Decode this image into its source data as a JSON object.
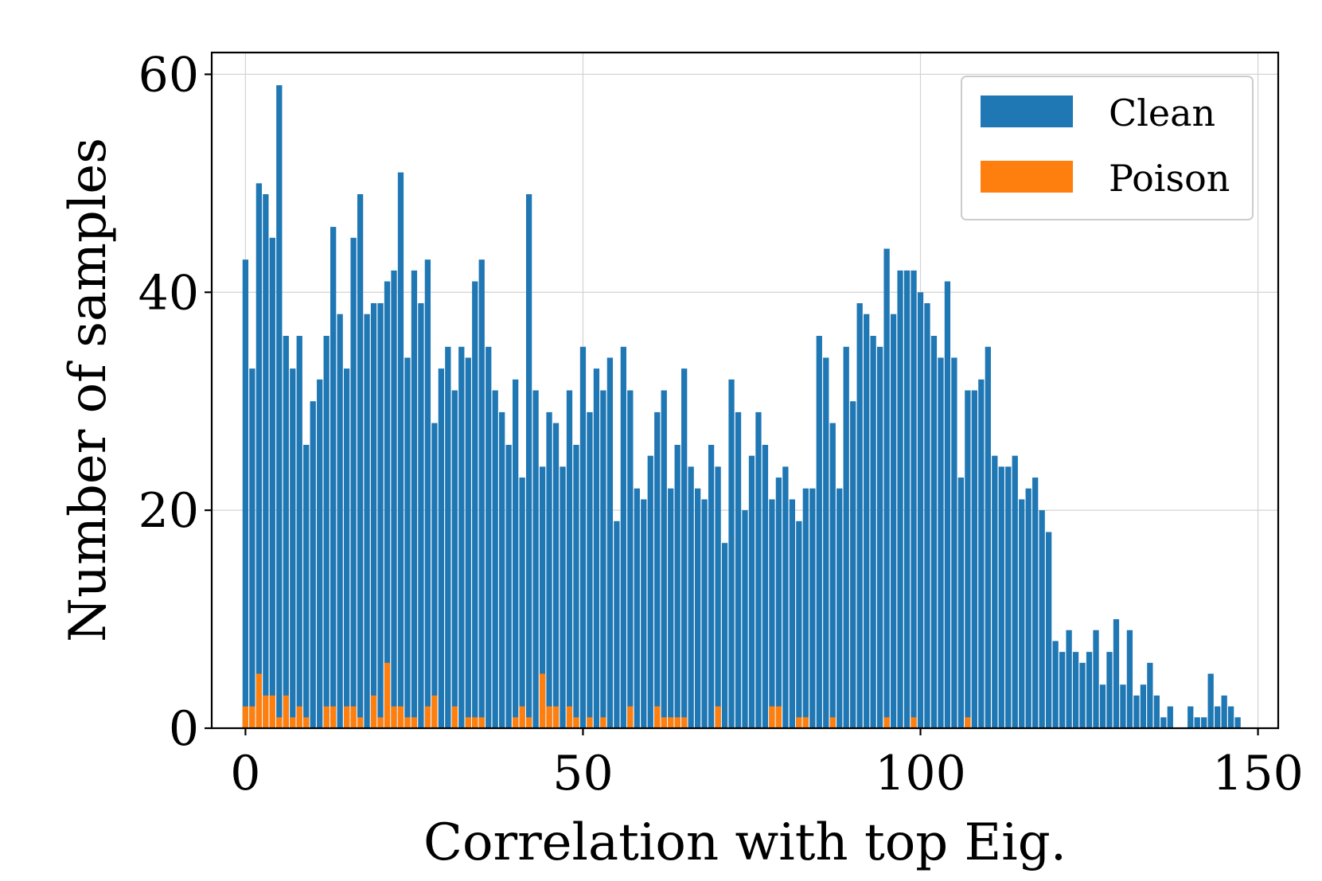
{
  "chart_data": {
    "type": "bar",
    "title": "",
    "xlabel": "Correlation with top Eig.",
    "ylabel": "Number of samples",
    "xlim": [
      -5,
      153
    ],
    "ylim": [
      0,
      62
    ],
    "xticks": [
      0,
      50,
      100,
      150
    ],
    "yticks": [
      0,
      20,
      40,
      60
    ],
    "grid": true,
    "legend_position": "top-right",
    "series": [
      {
        "name": "Clean",
        "color": "#1f77b4",
        "values": [
          43,
          33,
          50,
          49,
          45,
          59,
          36,
          33,
          36,
          26,
          30,
          32,
          36,
          46,
          38,
          33,
          45,
          49,
          38,
          39,
          39,
          41,
          42,
          51,
          34,
          42,
          39,
          43,
          28,
          33,
          35,
          31,
          35,
          34,
          41,
          43,
          35,
          31,
          29,
          26,
          32,
          23,
          49,
          31,
          24,
          29,
          28,
          24,
          31,
          26,
          35,
          29,
          33,
          31,
          34,
          19,
          35,
          31,
          22,
          21,
          25,
          29,
          31,
          22,
          26,
          33,
          24,
          22,
          21,
          26,
          24,
          17,
          32,
          29,
          20,
          25,
          29,
          26,
          21,
          23,
          24,
          21,
          19,
          22,
          22,
          36,
          34,
          28,
          22,
          35,
          30,
          39,
          38,
          36,
          35,
          44,
          38,
          42,
          42,
          42,
          40,
          39,
          36,
          34,
          41,
          34,
          23,
          31,
          31,
          32,
          35,
          25,
          24,
          24,
          25,
          21,
          22,
          23,
          20,
          18,
          8,
          7,
          9,
          7,
          6,
          7,
          9,
          4,
          7,
          10,
          4,
          9,
          3,
          4,
          6,
          3,
          1,
          2,
          0,
          0,
          2,
          1,
          1,
          5,
          2,
          3,
          2,
          1
        ]
      },
      {
        "name": "Poison",
        "color": "#ff7f0e",
        "values": [
          2,
          2,
          5,
          3,
          3,
          1,
          3,
          1,
          2,
          1,
          0,
          0,
          2,
          2,
          0,
          2,
          2,
          1,
          0,
          3,
          1,
          6,
          2,
          2,
          1,
          1,
          0,
          2,
          3,
          0,
          0,
          2,
          0,
          1,
          1,
          1,
          0,
          0,
          0,
          0,
          1,
          2,
          1,
          0,
          5,
          2,
          2,
          0,
          2,
          1,
          0,
          1,
          0,
          1,
          0,
          0,
          0,
          2,
          0,
          0,
          0,
          2,
          1,
          1,
          1,
          1,
          0,
          0,
          0,
          0,
          2,
          0,
          0,
          0,
          0,
          0,
          0,
          0,
          2,
          2,
          0,
          0,
          1,
          1,
          0,
          0,
          0,
          1,
          0,
          0,
          0,
          0,
          0,
          0,
          0,
          1,
          0,
          0,
          0,
          1,
          0,
          0,
          0,
          0,
          0,
          0,
          0,
          1,
          0,
          0,
          0,
          0,
          0,
          0,
          0,
          0,
          0,
          0,
          0,
          0,
          0,
          0,
          0,
          0,
          0,
          0,
          0,
          0,
          0,
          0,
          0,
          0,
          0,
          0,
          0,
          0,
          0,
          0,
          0,
          0,
          0,
          0,
          0,
          0,
          0,
          0,
          0,
          0
        ]
      }
    ]
  }
}
